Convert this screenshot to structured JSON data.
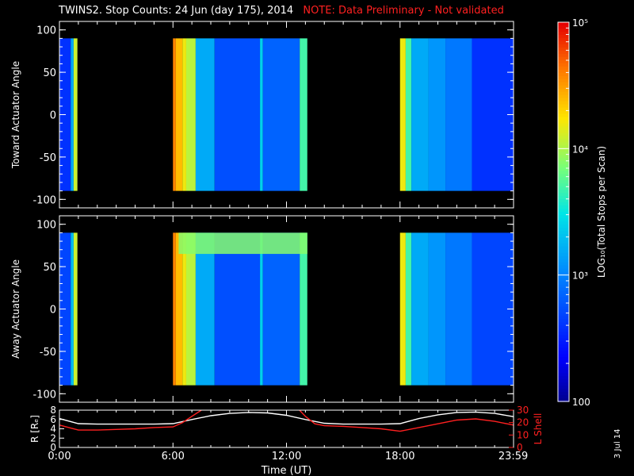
{
  "title": {
    "main": "TWINS2. Stop Counts: 24 Jun (day 175), 2014",
    "note": "NOTE: Data Preliminary - Not validated"
  },
  "date_stamp": "3 Jul 14",
  "colors": {
    "background": "#000000",
    "axes": "#ffffff",
    "note": "#ff2020",
    "lshell": "#ff2020",
    "r_line": "#ffffff"
  },
  "chart_data": [
    {
      "id": "toward",
      "type": "heatmap",
      "ylabel": "Toward Actuator Angle",
      "ylim": [
        -110,
        110
      ],
      "yticks": [
        100,
        50,
        0,
        -50,
        -100
      ],
      "ytick_labels": [
        "100",
        "50",
        "0",
        "-50",
        "-100"
      ],
      "xlim_hours": [
        0,
        24
      ],
      "data_angle_range": [
        -90,
        90
      ],
      "color_scale": "log10",
      "segments_hours": [
        [
          0.0,
          0.95
        ],
        [
          6.0,
          13.1
        ],
        [
          18.0,
          24.0
        ]
      ],
      "columns": [
        {
          "t0": 0.0,
          "t1": 0.6,
          "log": 2.6
        },
        {
          "t0": 0.6,
          "t1": 0.75,
          "log": 3.2
        },
        {
          "t0": 0.75,
          "t1": 0.95,
          "log": 4.1
        },
        {
          "t0": 6.0,
          "t1": 0.0,
          "log": 0
        },
        {
          "t0": 6.0,
          "t1": 6.15,
          "log": 4.6
        },
        {
          "t0": 6.15,
          "t1": 6.5,
          "log": 4.4
        },
        {
          "t0": 6.5,
          "t1": 6.7,
          "log": 4.2
        },
        {
          "t0": 6.7,
          "t1": 7.2,
          "log": 4.05
        },
        {
          "t0": 7.2,
          "t1": 8.2,
          "log": 3.2
        },
        {
          "t0": 8.2,
          "t1": 10.6,
          "log": 2.75
        },
        {
          "t0": 10.6,
          "t1": 10.75,
          "log": 3.4
        },
        {
          "t0": 10.75,
          "t1": 12.7,
          "log": 2.85
        },
        {
          "t0": 12.7,
          "t1": 13.1,
          "log": 3.7
        },
        {
          "t0": 18.0,
          "t1": 18.3,
          "log": 4.2
        },
        {
          "t0": 18.3,
          "t1": 18.6,
          "log": 3.7
        },
        {
          "t0": 18.6,
          "t1": 19.5,
          "log": 3.2
        },
        {
          "t0": 19.5,
          "t1": 20.4,
          "log": 3.1
        },
        {
          "t0": 20.4,
          "t1": 21.8,
          "log": 2.95
        },
        {
          "t0": 21.8,
          "t1": 24.0,
          "log": 2.6
        }
      ]
    },
    {
      "id": "away",
      "type": "heatmap",
      "ylabel": "Away Actuator Angle",
      "ylim": [
        -110,
        110
      ],
      "yticks": [
        100,
        50,
        0,
        -50,
        -100
      ],
      "ytick_labels": [
        "100",
        "50",
        "0",
        "-50",
        "-100"
      ],
      "xlim_hours": [
        0,
        24
      ],
      "data_angle_range": [
        -90,
        90
      ],
      "color_scale": "log10",
      "segments_hours": [
        [
          0.0,
          0.95
        ],
        [
          6.0,
          13.1
        ],
        [
          18.0,
          24.0
        ]
      ],
      "band_high": {
        "t0": 6.3,
        "t1": 13.1,
        "angle0": 65,
        "angle1": 90,
        "log": 3.9
      },
      "columns": [
        {
          "t0": 0.0,
          "t1": 0.6,
          "log": 2.7
        },
        {
          "t0": 0.6,
          "t1": 0.75,
          "log": 3.3
        },
        {
          "t0": 0.75,
          "t1": 0.95,
          "log": 4.1
        },
        {
          "t0": 6.0,
          "t1": 6.15,
          "log": 4.6
        },
        {
          "t0": 6.15,
          "t1": 6.5,
          "log": 4.4
        },
        {
          "t0": 6.5,
          "t1": 6.7,
          "log": 4.2
        },
        {
          "t0": 6.7,
          "t1": 7.2,
          "log": 4.05
        },
        {
          "t0": 7.2,
          "t1": 8.2,
          "log": 3.2
        },
        {
          "t0": 8.2,
          "t1": 10.6,
          "log": 2.75
        },
        {
          "t0": 10.6,
          "t1": 10.75,
          "log": 3.4
        },
        {
          "t0": 10.75,
          "t1": 12.7,
          "log": 2.85
        },
        {
          "t0": 12.7,
          "t1": 13.1,
          "log": 3.7
        },
        {
          "t0": 18.0,
          "t1": 18.3,
          "log": 4.2
        },
        {
          "t0": 18.3,
          "t1": 18.6,
          "log": 3.7
        },
        {
          "t0": 18.6,
          "t1": 19.5,
          "log": 3.2
        },
        {
          "t0": 19.5,
          "t1": 20.4,
          "log": 3.1
        },
        {
          "t0": 20.4,
          "t1": 21.8,
          "log": 2.95
        },
        {
          "t0": 21.8,
          "t1": 24.0,
          "log": 2.7
        }
      ]
    },
    {
      "id": "orbit",
      "type": "line",
      "ylabel_left": "R [Rₑ]",
      "ylabel_right": "L Shell",
      "xlabel": "Time (UT)",
      "xlim_hours": [
        0,
        24
      ],
      "xticks_hours": [
        0,
        6,
        12,
        18,
        23.983
      ],
      "xtick_labels": [
        "0:00",
        "6:00",
        "12:00",
        "18:00",
        "23:59"
      ],
      "ylim_left": [
        0,
        8
      ],
      "yticks_left": [
        0,
        2,
        4,
        6,
        8
      ],
      "ytick_labels_left": [
        "0",
        "2",
        "4",
        "6",
        "8"
      ],
      "ylim_right": [
        0,
        30
      ],
      "yticks_right": [
        0,
        10,
        20,
        30
      ],
      "ytick_labels_right": [
        "0",
        "10",
        "20",
        "30"
      ],
      "series": [
        {
          "axis": "left",
          "color": "#ffffff",
          "x": [
            0,
            1,
            2,
            3,
            4,
            5,
            6,
            7,
            8,
            9,
            10,
            11,
            12,
            13,
            14,
            15,
            16,
            17,
            18,
            19,
            20,
            21,
            22,
            23,
            24
          ],
          "y": [
            6.2,
            5.1,
            5.0,
            5.0,
            5.0,
            5.0,
            5.1,
            6.0,
            6.8,
            7.3,
            7.5,
            7.4,
            6.9,
            6.0,
            5.2,
            5.0,
            5.0,
            5.0,
            5.1,
            6.2,
            7.0,
            7.5,
            7.6,
            7.3,
            6.6
          ]
        },
        {
          "axis": "right",
          "color": "#ff2020",
          "x": [
            0,
            0.5,
            1,
            2,
            3,
            4,
            5,
            6,
            6.5,
            7,
            7.5,
            8.0
          ],
          "y": [
            18,
            16,
            14,
            14,
            14.5,
            15,
            16,
            16.5,
            20,
            25,
            30,
            33
          ]
        },
        {
          "axis": "right",
          "color": "#ff2020",
          "x": [
            12.5,
            13.0,
            13.5,
            14,
            15,
            16,
            17,
            18,
            19,
            20,
            21,
            22,
            23,
            24
          ],
          "y": [
            33,
            25,
            19,
            17.5,
            17,
            16,
            15,
            13,
            16,
            19,
            22,
            23,
            21,
            18
          ]
        }
      ]
    },
    {
      "id": "colorbar",
      "type": "colorbar",
      "ylabel": "LOG₁₀(Total Stops per Scan)",
      "log_range": [
        2,
        5
      ],
      "ticks_log": [
        5,
        4,
        3,
        2
      ],
      "tick_labels": [
        "10⁵",
        "10⁴",
        "10³",
        "100"
      ]
    }
  ]
}
